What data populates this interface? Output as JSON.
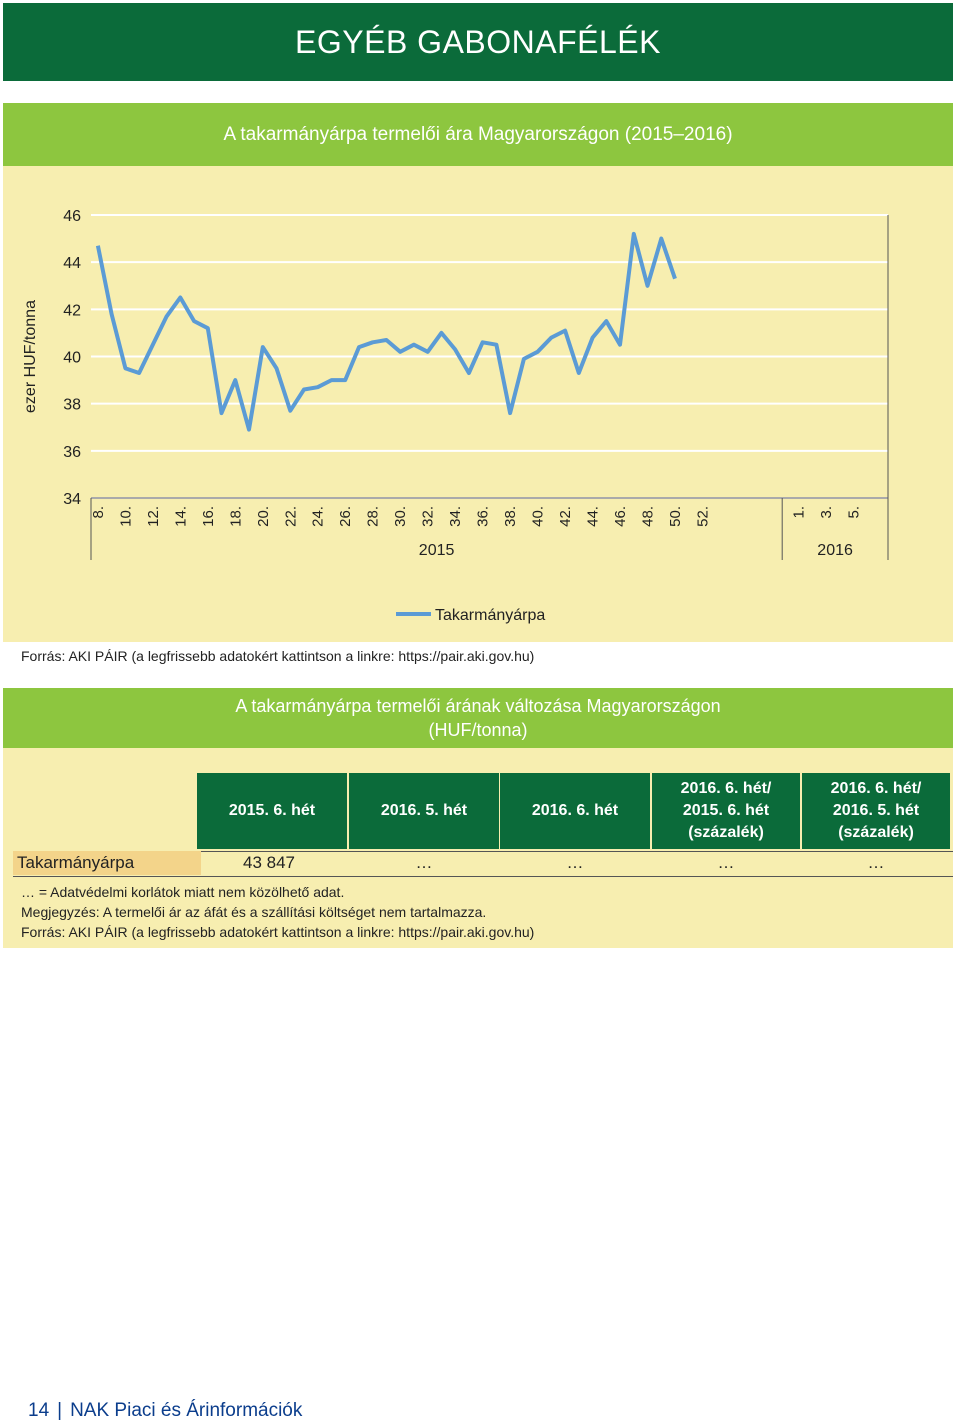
{
  "header": {
    "title": "EGYÉB GABONAFÉLÉK"
  },
  "chart_section": {
    "title": "A takarmányárpa termelői ára Magyarországon (2015–2016)",
    "source": "Forrás: AKI PÁIR (a legfrissebb adatokért kattintson a linkre: https://pair.aki.gov.hu)"
  },
  "chart_data": {
    "type": "line",
    "ylabel": "ezer HUF/tonna",
    "ylim": [
      34,
      46
    ],
    "yticks": [
      34,
      36,
      38,
      40,
      42,
      44,
      46
    ],
    "grid": "horizontal",
    "legend": "bottom",
    "x_ticks": [
      "8.",
      "10.",
      "12.",
      "14.",
      "16.",
      "18.",
      "20.",
      "22.",
      "24.",
      "26.",
      "28.",
      "30.",
      "32.",
      "34.",
      "36.",
      "38.",
      "40.",
      "42.",
      "44.",
      "46.",
      "48.",
      "50.",
      "52.",
      "1.",
      "3.",
      "5."
    ],
    "year_groups": [
      {
        "label": "2015",
        "from": 8,
        "to": 53
      },
      {
        "label": "2016",
        "from": 1,
        "to": 6
      }
    ],
    "series": [
      {
        "name": "Takarmányárpa",
        "color": "#5b9bd5",
        "x": [
          "8.",
          "9.",
          "10.",
          "11.",
          "12.",
          "13.",
          "14.",
          "15.",
          "16.",
          "17.",
          "18.",
          "19.",
          "20.",
          "21.",
          "22.",
          "23.",
          "24.",
          "25.",
          "26.",
          "27.",
          "28.",
          "29.",
          "30.",
          "31.",
          "32.",
          "33.",
          "34.",
          "35.",
          "36.",
          "37.",
          "38.",
          "39.",
          "40.",
          "41.",
          "42.",
          "43.",
          "44.",
          "45.",
          "46.",
          "47.",
          "48.",
          "49.",
          "50.",
          "51.",
          "52.",
          "53.",
          "1.",
          "2.",
          "3.",
          "4.",
          "5.",
          "6."
        ],
        "values": [
          44.7,
          41.8,
          39.5,
          39.3,
          40.5,
          41.7,
          42.5,
          41.5,
          41.2,
          37.6,
          39.0,
          36.9,
          40.4,
          39.5,
          37.7,
          38.6,
          38.7,
          39.0,
          39.0,
          40.4,
          40.6,
          40.7,
          40.2,
          40.5,
          40.2,
          41.0,
          40.3,
          39.3,
          40.6,
          40.5,
          37.6,
          39.9,
          40.2,
          40.8,
          41.1,
          39.3,
          40.8,
          41.5,
          40.5,
          45.2,
          43.0,
          45.0,
          43.3,
          null,
          null,
          null,
          null,
          null,
          null,
          null,
          null,
          null
        ]
      }
    ]
  },
  "table_section": {
    "title_line1": "A takarmányárpa termelői árának változása Magyarországon",
    "title_line2": "(HUF/tonna)",
    "headers": [
      {
        "line1": "2015. 6. hét",
        "line2": "",
        "line3": ""
      },
      {
        "line1": "2016. 5. hét",
        "line2": "",
        "line3": ""
      },
      {
        "line1": "2016. 6. hét",
        "line2": "",
        "line3": ""
      },
      {
        "line1": "2016. 6. hét/",
        "line2": "2015. 6. hét",
        "line3": "(százalék)"
      },
      {
        "line1": "2016. 6. hét/",
        "line2": "2016. 5. hét",
        "line3": "(százalék)"
      }
    ],
    "row": {
      "label": "Takarmányárpa",
      "values": [
        "43 847",
        "…",
        "…",
        "…",
        "…"
      ]
    },
    "notes": [
      "… = Adatvédelmi korlátok miatt nem közölhető adat.",
      "Megjegyzés: A termelői ár az áfát és a szállítási költséget nem tartalmazza.",
      "Forrás: AKI PÁIR (a legfrissebb adatokért kattintson a linkre: https://pair.aki.gov.hu)"
    ]
  },
  "footer": {
    "page_number": "14",
    "publication": "NAK Piaci és Árinformációk"
  }
}
